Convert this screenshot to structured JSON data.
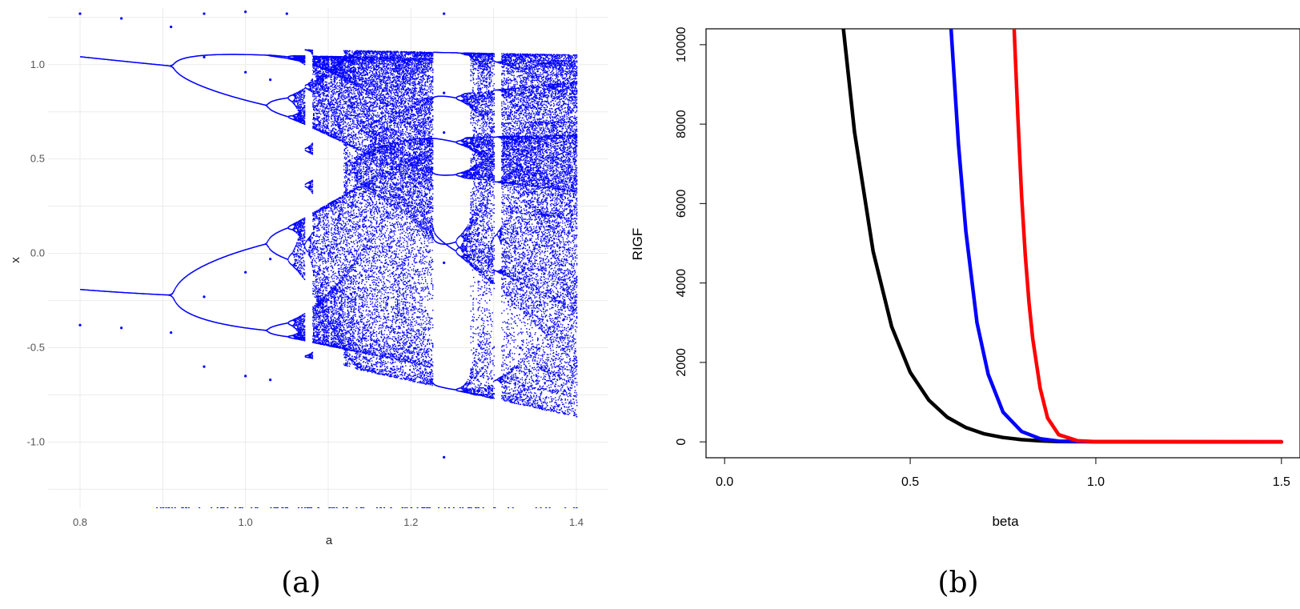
{
  "chart_data": [
    {
      "type": "scatter",
      "panel_label": "(a)",
      "xlabel": "a",
      "ylabel": "x",
      "xlim": [
        0.8,
        1.4
      ],
      "ylim": [
        -1.35,
        1.3
      ],
      "xticks": [
        "0.8",
        "1.0",
        "1.2",
        "1.4"
      ],
      "yticks": [
        "-1.0",
        "-0.5",
        "0.0",
        "0.5",
        "1.0"
      ],
      "grid": true,
      "point_color": "#0000ff",
      "series": [
        {
          "values": [
            {
              "x": 0.8,
              "y": 1.27
            },
            {
              "x": 0.85,
              "y": 1.245
            },
            {
              "x": 0.91,
              "y": 1.2
            },
            {
              "x": 0.8,
              "y": -0.38
            },
            {
              "x": 0.85,
              "y": -0.395
            },
            {
              "x": 0.91,
              "y": -0.42
            },
            {
              "x": 0.95,
              "y": 1.27
            },
            {
              "x": 1.0,
              "y": 1.28
            },
            {
              "x": 1.05,
              "y": 1.27
            },
            {
              "x": 0.95,
              "y": 1.04
            },
            {
              "x": 1.0,
              "y": 0.96
            },
            {
              "x": 1.03,
              "y": 0.92
            },
            {
              "x": 0.95,
              "y": -0.23
            },
            {
              "x": 1.0,
              "y": -0.1
            },
            {
              "x": 1.03,
              "y": -0.03
            },
            {
              "x": 0.95,
              "y": -0.6
            },
            {
              "x": 1.0,
              "y": -0.65
            },
            {
              "x": 1.03,
              "y": -0.67
            },
            {
              "x": 1.24,
              "y": 1.27
            },
            {
              "x": 1.24,
              "y": 0.85
            },
            {
              "x": 1.24,
              "y": 0.64
            },
            {
              "x": 1.24,
              "y": -0.05
            },
            {
              "x": 1.24,
              "y": -1.08
            }
          ]
        }
      ]
    },
    {
      "type": "line",
      "panel_label": "(b)",
      "xlabel": "beta",
      "ylabel": "RIGF",
      "xlim": [
        -0.05,
        1.55
      ],
      "ylim": [
        -400,
        10400
      ],
      "xticks": [
        "0.0",
        "0.5",
        "1.0",
        "1.5"
      ],
      "yticks": [
        "0",
        "2000",
        "4000",
        "6000",
        "8000",
        "10000"
      ],
      "grid": false,
      "series": [
        {
          "color": "#000000",
          "points": [
            {
              "x": 0.32,
              "y": 10400
            },
            {
              "x": 0.35,
              "y": 7800
            },
            {
              "x": 0.4,
              "y": 4800
            },
            {
              "x": 0.45,
              "y": 2900
            },
            {
              "x": 0.5,
              "y": 1750
            },
            {
              "x": 0.55,
              "y": 1050
            },
            {
              "x": 0.6,
              "y": 620
            },
            {
              "x": 0.65,
              "y": 360
            },
            {
              "x": 0.7,
              "y": 200
            },
            {
              "x": 0.75,
              "y": 110
            },
            {
              "x": 0.8,
              "y": 55
            },
            {
              "x": 0.85,
              "y": 25
            },
            {
              "x": 0.9,
              "y": 10
            },
            {
              "x": 1.0,
              "y": 2
            },
            {
              "x": 1.5,
              "y": 0
            }
          ]
        },
        {
          "color": "#0000ff",
          "points": [
            {
              "x": 0.61,
              "y": 10400
            },
            {
              "x": 0.63,
              "y": 7500
            },
            {
              "x": 0.65,
              "y": 5300
            },
            {
              "x": 0.68,
              "y": 3000
            },
            {
              "x": 0.71,
              "y": 1700
            },
            {
              "x": 0.75,
              "y": 750
            },
            {
              "x": 0.8,
              "y": 260
            },
            {
              "x": 0.85,
              "y": 80
            },
            {
              "x": 0.9,
              "y": 20
            },
            {
              "x": 1.0,
              "y": 2
            },
            {
              "x": 1.5,
              "y": 0
            }
          ]
        },
        {
          "color": "#ff0000",
          "points": [
            {
              "x": 0.78,
              "y": 10400
            },
            {
              "x": 0.79,
              "y": 8200
            },
            {
              "x": 0.8,
              "y": 6200
            },
            {
              "x": 0.81,
              "y": 4700
            },
            {
              "x": 0.82,
              "y": 3500
            },
            {
              "x": 0.83,
              "y": 2600
            },
            {
              "x": 0.85,
              "y": 1350
            },
            {
              "x": 0.87,
              "y": 600
            },
            {
              "x": 0.9,
              "y": 180
            },
            {
              "x": 0.95,
              "y": 30
            },
            {
              "x": 1.0,
              "y": 5
            },
            {
              "x": 1.5,
              "y": 0
            }
          ]
        }
      ]
    }
  ]
}
